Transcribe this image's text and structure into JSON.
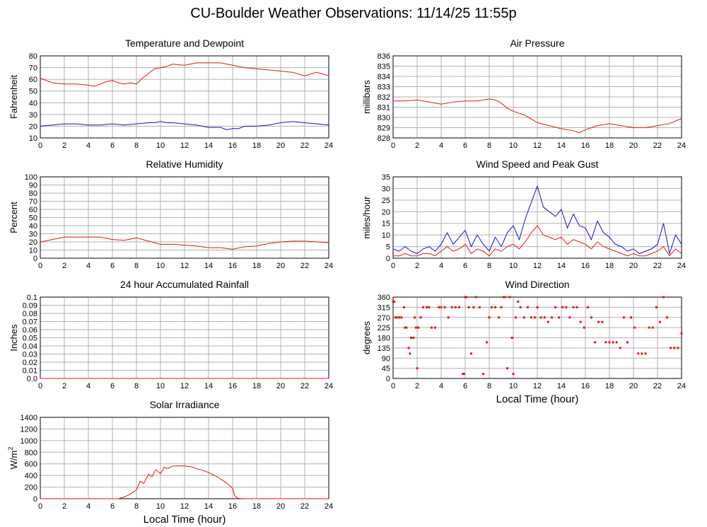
{
  "page": {
    "title": "CU-Boulder Weather Observations: 11/14/25 11:55p"
  },
  "colors": {
    "primary": "#ee1111",
    "secondary": "#1111cc",
    "grid": "#b0b0b0"
  },
  "chart_data": [
    {
      "id": "temperature",
      "type": "line",
      "title": "Temperature and Dewpoint",
      "xlabel": "",
      "ylabel": "Fahrenheit",
      "xlim": [
        0,
        24
      ],
      "ylim": [
        10,
        80
      ],
      "xticks": [
        0,
        2,
        4,
        6,
        8,
        10,
        12,
        14,
        16,
        18,
        20,
        22,
        24
      ],
      "yticks": [
        10,
        20,
        30,
        40,
        50,
        60,
        70,
        80
      ],
      "series": [
        {
          "color": "#ee1111",
          "x": [
            0,
            0.5,
            1,
            2,
            3,
            4,
            4.5,
            5,
            5.5,
            6,
            6.5,
            7,
            7.5,
            8,
            8.5,
            9,
            9.5,
            10,
            10.5,
            11,
            12,
            13,
            14,
            15,
            16,
            17,
            18,
            19,
            20,
            21,
            22,
            23,
            24
          ],
          "y": [
            61,
            59,
            57,
            56,
            56,
            55,
            54,
            56,
            58,
            59,
            57,
            56,
            57,
            56,
            61,
            65,
            69,
            70,
            71,
            73,
            72,
            74,
            74,
            74,
            72,
            70,
            69,
            68,
            67,
            66,
            63,
            66,
            63
          ]
        },
        {
          "color": "#1111cc",
          "x": [
            0,
            1,
            2,
            3,
            4,
            5,
            6,
            7,
            8,
            9,
            9.5,
            10,
            10.5,
            11,
            12,
            13,
            14,
            15,
            15.5,
            16,
            16.5,
            17,
            18,
            19,
            20,
            21,
            22,
            23,
            24
          ],
          "y": [
            20,
            21,
            22,
            22,
            21,
            21,
            22,
            21,
            22,
            23,
            23,
            24,
            23,
            23,
            22,
            21,
            19,
            19,
            17,
            18,
            18,
            20,
            20,
            21,
            23,
            24,
            23,
            22,
            21
          ]
        }
      ]
    },
    {
      "id": "pressure",
      "type": "line",
      "title": "Air Pressure",
      "xlabel": "",
      "ylabel": "millibars",
      "xlim": [
        0,
        24
      ],
      "ylim": [
        828,
        836
      ],
      "xticks": [
        0,
        2,
        4,
        6,
        8,
        10,
        12,
        14,
        16,
        18,
        20,
        22,
        24
      ],
      "yticks": [
        828,
        829,
        830,
        831,
        832,
        833,
        834,
        835,
        836
      ],
      "series": [
        {
          "color": "#ee1111",
          "x": [
            0,
            1,
            2,
            3,
            4,
            5,
            6,
            7,
            8,
            8.5,
            9,
            9.5,
            10,
            11,
            12,
            13,
            14,
            15,
            15.5,
            16,
            17,
            18,
            19,
            20,
            21,
            22,
            23,
            24
          ],
          "y": [
            831.6,
            831.6,
            831.7,
            831.5,
            831.3,
            831.5,
            831.6,
            831.6,
            831.8,
            831.7,
            831.4,
            830.9,
            830.6,
            830.2,
            829.5,
            829.2,
            828.9,
            828.7,
            828.5,
            828.8,
            829.2,
            829.4,
            829.2,
            829.0,
            829.0,
            829.2,
            829.4,
            829.9
          ]
        }
      ]
    },
    {
      "id": "humidity",
      "type": "line",
      "title": "Relative Humidity",
      "xlabel": "",
      "ylabel": "Percent",
      "xlim": [
        0,
        24
      ],
      "ylim": [
        0,
        100
      ],
      "xticks": [
        0,
        2,
        4,
        6,
        8,
        10,
        12,
        14,
        16,
        18,
        20,
        22,
        24
      ],
      "yticks": [
        0,
        10,
        20,
        30,
        40,
        50,
        60,
        70,
        80,
        90,
        100
      ],
      "series": [
        {
          "color": "#ee1111",
          "x": [
            0,
            1,
            2,
            3,
            4,
            5,
            6,
            7,
            8,
            9,
            10,
            11,
            12,
            13,
            14,
            15,
            16,
            17,
            18,
            19,
            20,
            21,
            22,
            23,
            24
          ],
          "y": [
            20,
            23,
            26,
            26,
            26,
            26,
            23,
            22,
            25,
            21,
            17,
            17,
            16,
            15,
            13,
            13,
            11,
            14,
            15,
            18,
            20,
            21,
            21,
            20,
            19
          ]
        }
      ]
    },
    {
      "id": "wind",
      "type": "line",
      "title": "Wind Speed and Peak Gust",
      "xlabel": "",
      "ylabel": "miles/hour",
      "xlim": [
        0,
        24
      ],
      "ylim": [
        0,
        35
      ],
      "xticks": [
        0,
        2,
        4,
        6,
        8,
        10,
        12,
        14,
        16,
        18,
        20,
        22,
        24
      ],
      "yticks": [
        0,
        5,
        10,
        15,
        20,
        25,
        30,
        35
      ],
      "series": [
        {
          "color": "#1111cc",
          "x": [
            0,
            0.5,
            1,
            1.5,
            2,
            2.5,
            3,
            3.5,
            4,
            4.5,
            5,
            5.5,
            6,
            6.5,
            7,
            7.5,
            8,
            8.5,
            9,
            9.5,
            10,
            10.5,
            11,
            11.5,
            12,
            12.5,
            13,
            13.5,
            14,
            14.5,
            15,
            15.5,
            16,
            16.5,
            17,
            17.5,
            18,
            18.5,
            19,
            19.5,
            20,
            20.5,
            21,
            21.5,
            22,
            22.5,
            23,
            23.5,
            24
          ],
          "y": [
            4,
            3,
            5,
            3,
            2,
            4,
            5,
            3,
            6,
            11,
            6,
            9,
            12,
            5,
            10,
            6,
            3,
            9,
            5,
            11,
            14,
            8,
            17,
            24,
            31,
            22,
            20,
            18,
            21,
            13,
            19,
            14,
            13,
            8,
            16,
            11,
            9,
            6,
            5,
            3,
            4,
            2,
            3,
            4,
            6,
            15,
            2,
            10,
            6
          ]
        },
        {
          "color": "#ee1111",
          "x": [
            0,
            0.5,
            1,
            1.5,
            2,
            2.5,
            3,
            3.5,
            4,
            4.5,
            5,
            5.5,
            6,
            6.5,
            7,
            7.5,
            8,
            8.5,
            9,
            9.5,
            10,
            10.5,
            11,
            11.5,
            12,
            12.5,
            13,
            13.5,
            14,
            14.5,
            15,
            15.5,
            16,
            16.5,
            17,
            17.5,
            18,
            18.5,
            19,
            19.5,
            20,
            20.5,
            21,
            21.5,
            22,
            22.5,
            23,
            23.5,
            24
          ],
          "y": [
            1,
            1,
            2,
            1,
            1,
            2,
            2,
            1,
            3,
            5,
            3,
            4,
            6,
            2,
            4,
            3,
            1,
            4,
            3,
            5,
            6,
            4,
            7,
            11,
            14,
            10,
            9,
            8,
            9,
            6,
            8,
            7,
            6,
            4,
            7,
            5,
            4,
            3,
            2,
            1,
            2,
            1,
            1,
            2,
            3,
            5,
            1,
            4,
            2
          ]
        }
      ]
    },
    {
      "id": "rainfall",
      "type": "line",
      "title": "24 hour Accumulated Rainfall",
      "xlabel": "",
      "ylabel": "Inches",
      "xlim": [
        0,
        24
      ],
      "ylim": [
        0,
        0.1
      ],
      "xticks": [
        0,
        2,
        4,
        6,
        8,
        10,
        12,
        14,
        16,
        18,
        20,
        22,
        24
      ],
      "yticks": [
        0,
        0.01,
        0.02,
        0.03,
        0.04,
        0.05,
        0.06,
        0.07,
        0.08,
        0.09,
        0.1
      ],
      "ytick_labels": [
        "0.0",
        "0.01",
        "0.02",
        "0.03",
        "0.04",
        "0.05",
        "0.06",
        "0.07",
        "0.08",
        "0.09",
        "0.1"
      ],
      "series": [
        {
          "color": "#ee1111",
          "x": [
            0,
            24
          ],
          "y": [
            0,
            0
          ]
        }
      ]
    },
    {
      "id": "winddir",
      "type": "scatter",
      "title": "Wind Direction",
      "xlabel": "Local Time (hour)",
      "ylabel": "degrees",
      "xlim": [
        0,
        24
      ],
      "ylim": [
        0,
        360
      ],
      "xticks": [
        0,
        2,
        4,
        6,
        8,
        10,
        12,
        14,
        16,
        18,
        20,
        22,
        24
      ],
      "yticks": [
        0,
        45,
        90,
        135,
        180,
        225,
        270,
        315,
        360
      ],
      "series": [
        {
          "color": "#ee1111",
          "x": [
            0,
            0.1,
            0.2,
            0.3,
            0.5,
            0.7,
            0.9,
            1.0,
            1.1,
            1.3,
            1.4,
            1.5,
            1.7,
            1.8,
            1.9,
            2.0,
            2.1,
            2.3,
            2.5,
            2.8,
            3.0,
            3.2,
            3.5,
            3.8,
            4.0,
            4.3,
            4.6,
            4.9,
            5.2,
            5.5,
            5.8,
            5.9,
            6.0,
            6.1,
            6.3,
            6.5,
            6.7,
            6.9,
            7.2,
            7.5,
            7.8,
            8.0,
            8.2,
            8.5,
            8.8,
            9.0,
            9.2,
            9.3,
            9.5,
            9.7,
            9.9,
            10.0,
            10.2,
            10.4,
            10.6,
            10.9,
            11.2,
            11.5,
            11.8,
            12.0,
            12.3,
            12.6,
            12.9,
            13.2,
            13.5,
            13.8,
            14.1,
            14.4,
            14.7,
            15.0,
            15.3,
            15.6,
            15.9,
            16.2,
            16.5,
            16.8,
            17.1,
            17.4,
            17.7,
            18.0,
            18.3,
            18.6,
            18.9,
            19.2,
            19.5,
            19.8,
            20.1,
            20.4,
            20.7,
            21.0,
            21.3,
            21.6,
            21.9,
            22.2,
            22.5,
            22.8,
            23.1,
            23.4,
            23.7,
            24.0
          ],
          "y": [
            340,
            340,
            270,
            270,
            270,
            270,
            315,
            225,
            225,
            135,
            110,
            180,
            180,
            270,
            225,
            45,
            225,
            270,
            315,
            315,
            315,
            225,
            225,
            315,
            315,
            315,
            270,
            315,
            315,
            315,
            20,
            20,
            360,
            360,
            315,
            110,
            315,
            360,
            315,
            20,
            160,
            270,
            315,
            315,
            270,
            315,
            360,
            360,
            45,
            360,
            180,
            20,
            270,
            340,
            315,
            270,
            315,
            270,
            270,
            315,
            270,
            270,
            250,
            270,
            315,
            270,
            315,
            315,
            270,
            315,
            315,
            250,
            225,
            315,
            270,
            160,
            250,
            250,
            160,
            160,
            160,
            160,
            135,
            270,
            160,
            270,
            225,
            110,
            110,
            110,
            225,
            225,
            315,
            250,
            360,
            270,
            135,
            135,
            135,
            200
          ]
        }
      ]
    },
    {
      "id": "solar",
      "type": "area",
      "title": "Solar Irradiance",
      "xlabel": "Local Time (hour)",
      "ylabel": "W/m",
      "ylabel_sup": "2",
      "xlim": [
        0,
        24
      ],
      "ylim": [
        0,
        1400
      ],
      "xticks": [
        0,
        2,
        4,
        6,
        8,
        10,
        12,
        14,
        16,
        18,
        20,
        22,
        24
      ],
      "yticks": [
        0,
        200,
        400,
        600,
        800,
        1000,
        1200,
        1400
      ],
      "series": [
        {
          "color": "#ee1111",
          "x": [
            0,
            6.5,
            7,
            7.5,
            8,
            8.3,
            8.6,
            9,
            9.3,
            9.6,
            10,
            10.3,
            10.6,
            11,
            11.5,
            12,
            12.5,
            13,
            13.5,
            14,
            14.5,
            15,
            15.5,
            16,
            16.2,
            16.5,
            17,
            24
          ],
          "y": [
            0,
            0,
            30,
            80,
            150,
            300,
            260,
            420,
            380,
            500,
            430,
            540,
            520,
            560,
            565,
            565,
            550,
            520,
            490,
            450,
            400,
            340,
            270,
            180,
            40,
            5,
            0,
            0
          ]
        }
      ]
    }
  ]
}
